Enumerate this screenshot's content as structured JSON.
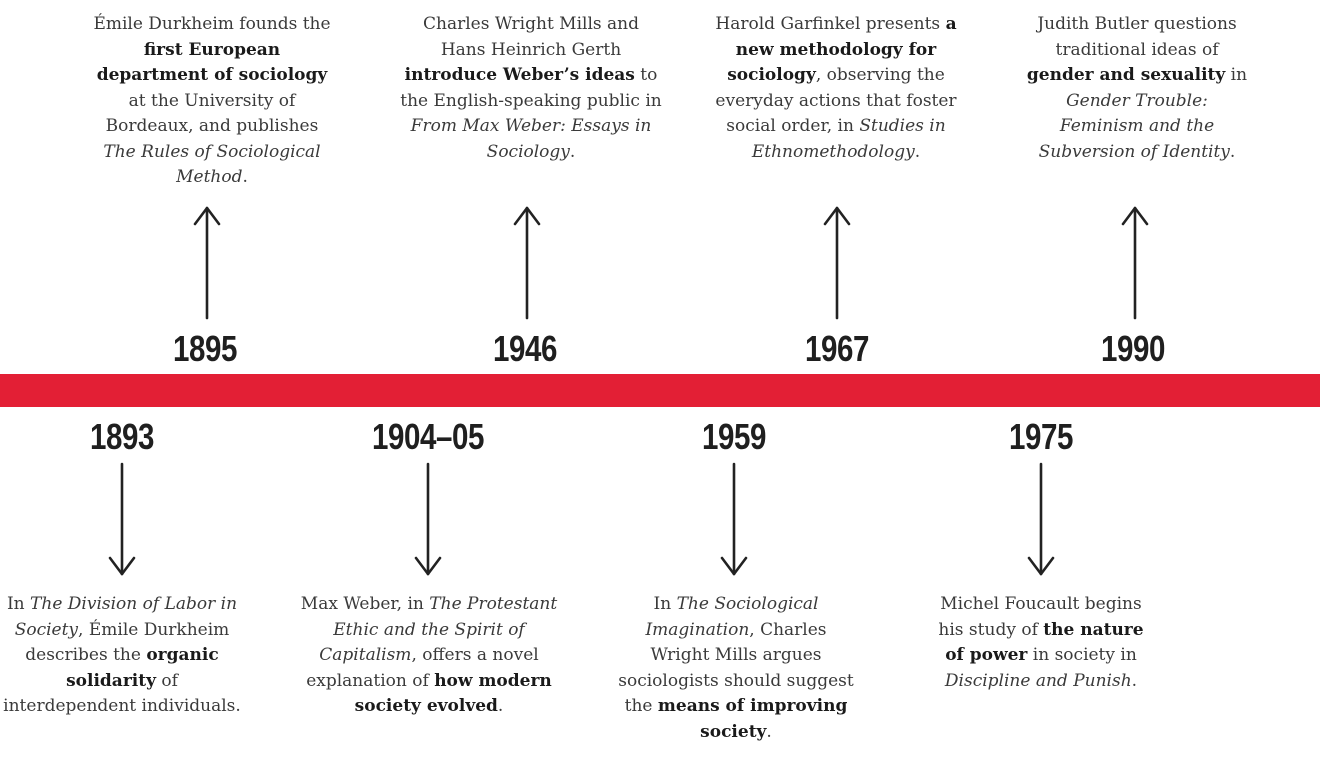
{
  "timeline": {
    "above": [
      {
        "year": "1895",
        "text": [
          {
            "t": "Émile Durkheim founds the "
          },
          {
            "t": "first European department of sociology",
            "s": "b"
          },
          {
            "t": " at the University of Bordeaux, and publishes "
          },
          {
            "t": "The Rules of Sociological Method",
            "s": "i"
          },
          {
            "t": "."
          }
        ]
      },
      {
        "year": "1946",
        "text": [
          {
            "t": "Charles Wright Mills and Hans Heinrich Gerth "
          },
          {
            "t": "introduce Weber’s ideas",
            "s": "b"
          },
          {
            "t": " to the English-speaking public in "
          },
          {
            "t": "From Max Weber: Essays in Sociology",
            "s": "i"
          },
          {
            "t": "."
          }
        ]
      },
      {
        "year": "1967",
        "text": [
          {
            "t": "Harold Garfinkel presents "
          },
          {
            "t": "a new methodology for sociology",
            "s": "b"
          },
          {
            "t": ", observing the everyday actions that foster social order, in "
          },
          {
            "t": "Studies in Ethnomethodology",
            "s": "i"
          },
          {
            "t": "."
          }
        ]
      },
      {
        "year": "1990",
        "text": [
          {
            "t": "Judith Butler questions traditional ideas of "
          },
          {
            "t": "gender and sexuality",
            "s": "b"
          },
          {
            "t": " in "
          },
          {
            "t": "Gender Trouble: Feminism and the Subversion of Identity",
            "s": "i"
          },
          {
            "t": "."
          }
        ]
      }
    ],
    "below": [
      {
        "year": "1893",
        "text": [
          {
            "t": "In "
          },
          {
            "t": "The Division of Labor in Society",
            "s": "i"
          },
          {
            "t": ", Émile Durkheim describes the "
          },
          {
            "t": "organic solidarity",
            "s": "b"
          },
          {
            "t": " of interdependent individuals."
          }
        ]
      },
      {
        "year": "1904–05",
        "text": [
          {
            "t": "Max Weber, in "
          },
          {
            "t": "The Protestant Ethic and the Spirit of Capitalism",
            "s": "i"
          },
          {
            "t": ", offers a novel explanation of "
          },
          {
            "t": "how modern society evolved",
            "s": "b"
          },
          {
            "t": "."
          }
        ]
      },
      {
        "year": "1959",
        "text": [
          {
            "t": "In "
          },
          {
            "t": "The Sociological Imagination",
            "s": "i"
          },
          {
            "t": ", Charles Wright Mills argues sociologists should suggest the "
          },
          {
            "t": "means of improving society",
            "s": "b"
          },
          {
            "t": "."
          }
        ]
      },
      {
        "year": "1975",
        "text": [
          {
            "t": "Michel Foucault begins his study of "
          },
          {
            "t": "the nature of power",
            "s": "b"
          },
          {
            "t": " in society in "
          },
          {
            "t": "Discipline and Punish",
            "s": "i"
          },
          {
            "t": "."
          }
        ]
      }
    ]
  }
}
